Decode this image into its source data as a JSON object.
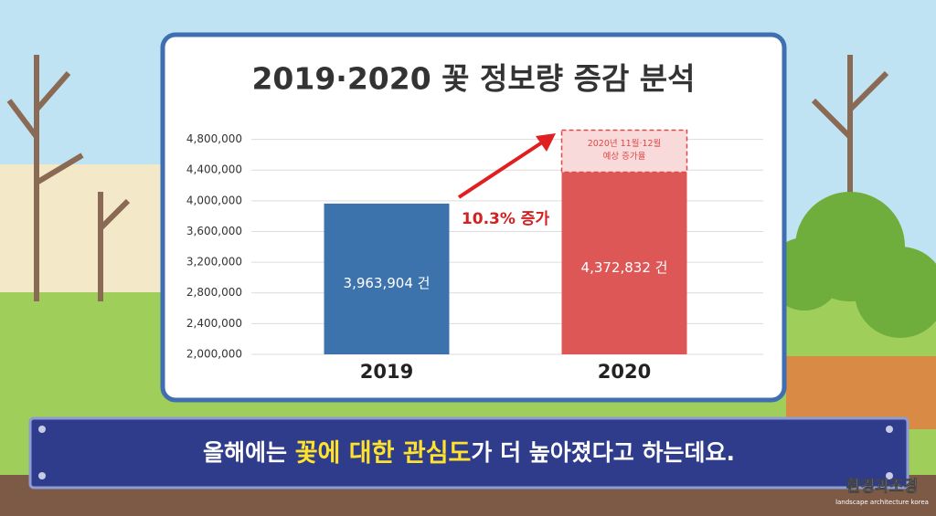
{
  "chart_data": {
    "type": "bar",
    "title": "2019·2020 꽃 정보량 증감 분석",
    "categories": [
      "2019",
      "2020"
    ],
    "values": [
      3963904,
      4372832
    ],
    "value_labels": [
      "3,963,904 건",
      "4,372,832 건"
    ],
    "colors": [
      "#3d73ad",
      "#de5757"
    ],
    "estimate": {
      "value": 4920000,
      "label_lines": [
        "2020년 11월·12월",
        "예상 증가율"
      ],
      "color": "#e04848"
    },
    "annotation": "10.3% 증가",
    "ylim": [
      2000000,
      4950000
    ],
    "yticks": [
      {
        "value": 2000000,
        "label": "2,000,000"
      },
      {
        "value": 2400000,
        "label": "2,400,000"
      },
      {
        "value": 2800000,
        "label": "2,800,000"
      },
      {
        "value": 3200000,
        "label": "3,200,000"
      },
      {
        "value": 3600000,
        "label": "3,600,000"
      },
      {
        "value": 4000000,
        "label": "4,000,000"
      },
      {
        "value": 4400000,
        "label": "4,400,000"
      },
      {
        "value": 4800000,
        "label": "4,800,000"
      }
    ],
    "grid": true
  },
  "caption": {
    "parts": [
      "올해에는 ",
      "꽃에 대한 관심도",
      "가 더 높아졌다고 하는데요."
    ]
  },
  "watermark": {
    "title": "환경과조경",
    "subtitle": "landscape architecture korea"
  }
}
